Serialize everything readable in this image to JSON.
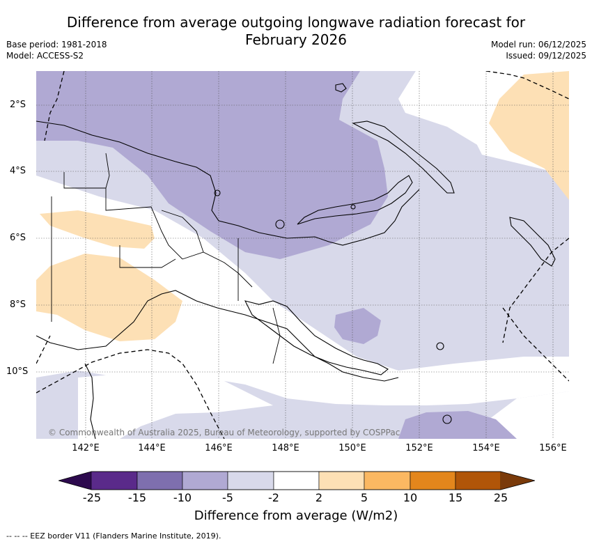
{
  "title": {
    "line1": "Difference from average outgoing longwave radiation forecast for",
    "line2": "February 2026"
  },
  "meta": {
    "base_period": "Base period: 1981-2018",
    "model": "Model: ACCESS-S2",
    "model_run": "Model run: 06/12/2025",
    "issued": "Issued: 09/12/2025"
  },
  "axes": {
    "lat_labels": [
      "2°S",
      "4°S",
      "6°S",
      "8°S",
      "10°S"
    ],
    "lon_labels": [
      "142°E",
      "144°E",
      "146°E",
      "148°E",
      "150°E",
      "152°E",
      "154°E",
      "156°E"
    ]
  },
  "copyright": "© Commonwealth of Australia 2025, Bureau of Meteorology, supported by COSPPac",
  "colorbar": {
    "title": "Difference from average (W/m2)",
    "tick_labels": [
      "-25",
      "-15",
      "-10",
      "-5",
      "-2",
      "2",
      "5",
      "10",
      "15",
      "25"
    ],
    "colors": {
      "below": "#2d0a4e",
      "c1": "#5a2a8a",
      "c2": "#7e6fae",
      "c3": "#b0a9d3",
      "c4": "#d8d9ea",
      "c5": "#ffffff",
      "c6": "#fde0b5",
      "c7": "#fbb862",
      "c8": "#e3861c",
      "c9": "#b05508",
      "above": "#7a3a0a"
    }
  },
  "footnote": "--  --  -- EEZ border V11 (Flanders Marine Institute, 2019)."
}
